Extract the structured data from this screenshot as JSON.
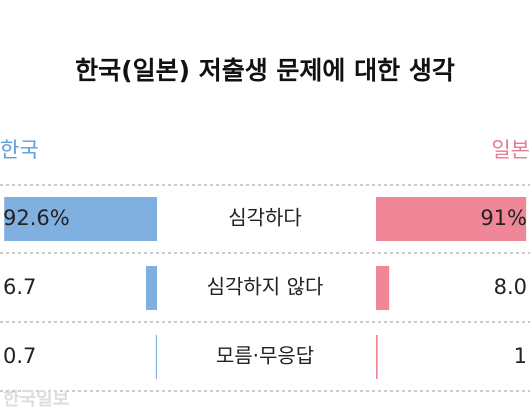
{
  "chart_data": {
    "type": "butterfly-bar",
    "title": "한국(일본) 저출생 문제에 대한 생각",
    "categories": [
      "심각하다",
      "심각하지 않다",
      "모름·무응답"
    ],
    "series": [
      {
        "name": "한국",
        "color": "#7fb0e0",
        "label_color": "#5b9fd8",
        "side": "left",
        "values": [
          92.6,
          6.7,
          0.7
        ],
        "value_labels": [
          "92.6%",
          "6.7",
          "0.7"
        ]
      },
      {
        "name": "일본",
        "color": "#ef8799",
        "label_color": "#e57b8d",
        "side": "right",
        "values": [
          91,
          8.0,
          1
        ],
        "value_labels": [
          "91%",
          "8.0",
          "1"
        ]
      }
    ],
    "watermark": "한국일보"
  }
}
